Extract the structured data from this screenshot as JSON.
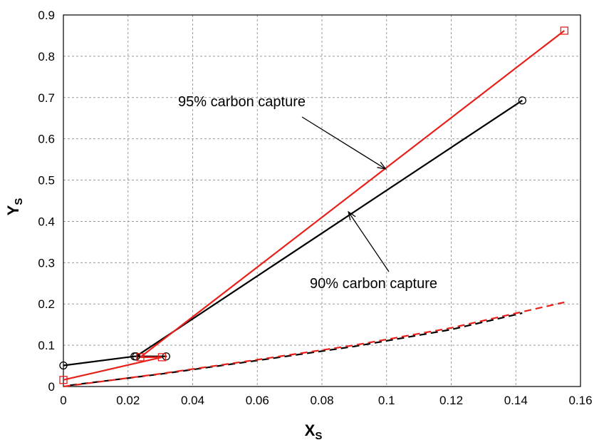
{
  "chart_data": {
    "type": "line",
    "xlabel": "X",
    "xlabel_sub": "S",
    "ylabel": "Y",
    "ylabel_sub": "S",
    "xlim": [
      0,
      0.16
    ],
    "ylim": [
      0,
      0.9
    ],
    "x_ticks": [
      0,
      0.02,
      0.04,
      0.06,
      0.08,
      0.1,
      0.12,
      0.14,
      0.16
    ],
    "x_tick_labels": [
      "0",
      "0.02",
      "0.04",
      "0.06",
      "0.08",
      "0.1",
      "0.12",
      "0.14",
      "0.16"
    ],
    "y_ticks": [
      0,
      0.1,
      0.2,
      0.3,
      0.4,
      0.5,
      0.6,
      0.7,
      0.8,
      0.9
    ],
    "y_tick_labels": [
      "0",
      "0.1",
      "0.2",
      "0.3",
      "0.4",
      "0.5",
      "0.6",
      "0.7",
      "0.8",
      "0.9"
    ],
    "grid": true,
    "series": [
      {
        "color": "#000000",
        "style": "solid",
        "marker": "circle",
        "points": [
          [
            0,
            0.051
          ],
          [
            0.022,
            0.073
          ],
          [
            0.0318,
            0.073
          ],
          [
            0.0225,
            0.073
          ],
          [
            0.142,
            0.693
          ]
        ]
      },
      {
        "color": "#e8201a",
        "style": "solid",
        "marker": "square",
        "points": [
          [
            0,
            0.016
          ],
          [
            0.0305,
            0.071
          ],
          [
            0.0238,
            0.071
          ],
          [
            0.155,
            0.862
          ]
        ]
      },
      {
        "color": "#000000",
        "style": "dashed",
        "marker": "none",
        "points": [
          [
            0.002,
            0.003
          ],
          [
            0.03,
            0.03
          ],
          [
            0.06,
            0.063
          ],
          [
            0.09,
            0.097
          ],
          [
            0.12,
            0.138
          ],
          [
            0.142,
            0.178
          ]
        ]
      },
      {
        "color": "#e8201a",
        "style": "dashed",
        "marker": "none",
        "points": [
          [
            0,
            0
          ],
          [
            0.03,
            0.031
          ],
          [
            0.06,
            0.065
          ],
          [
            0.09,
            0.1
          ],
          [
            0.12,
            0.142
          ],
          [
            0.155,
            0.204
          ]
        ]
      }
    ],
    "annotations": [
      {
        "text": "95% carbon capture",
        "arrow_to": [
          0.0997,
          0.527
        ]
      },
      {
        "text": "90% carbon capture",
        "arrow_to": [
          0.0882,
          0.423
        ]
      }
    ]
  }
}
